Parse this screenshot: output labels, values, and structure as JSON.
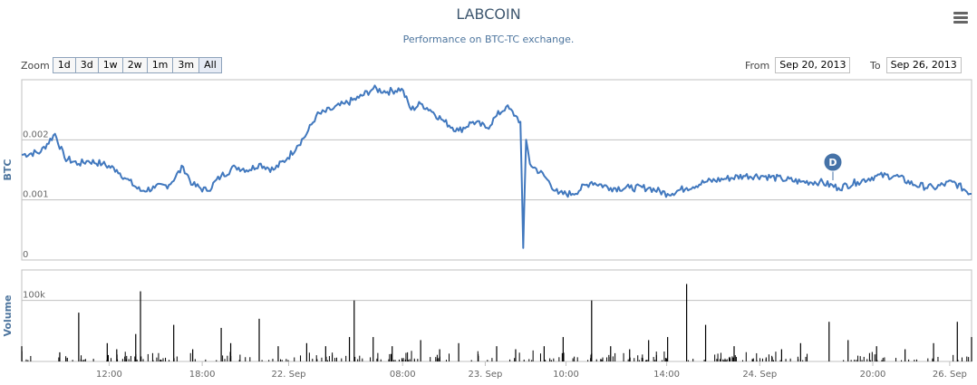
{
  "header": {
    "title": "LABCOIN",
    "subtitle": "Performance on BTC-TC exchange."
  },
  "toolbar": {
    "zoom_label": "Zoom",
    "zoom_buttons": [
      "1d",
      "3d",
      "1w",
      "2w",
      "1m",
      "3m",
      "All"
    ],
    "from_label": "From",
    "from_value": "Sep 20, 2013",
    "to_label": "To",
    "to_value": "Sep 26, 2013",
    "menu_icon": "hamburger-menu-icon"
  },
  "colors": {
    "series": "#4178be",
    "volume": "#000000",
    "grid": "#c0c0c0",
    "axis_title": "#4d759e",
    "flag": "#4572a7"
  },
  "chart_data": [
    {
      "type": "line",
      "ylabel": "BTC",
      "ylim": [
        0,
        0.003
      ],
      "y_ticks": [
        "0",
        "0.001",
        "0.002"
      ],
      "y_tick_values": [
        0,
        0.001,
        0.002
      ],
      "x_ticks": [
        "12:00",
        "18:00",
        "22. Sep",
        "08:00",
        "23. Sep",
        "10:00",
        "14:00",
        "24. Sep",
        "20:00",
        "26. Sep"
      ],
      "flag": {
        "label": "D",
        "x": 0.854
      },
      "series": [
        {
          "x": [
            0.0,
            0.02,
            0.035,
            0.045,
            0.06,
            0.07,
            0.085,
            0.1,
            0.11,
            0.125,
            0.14,
            0.155,
            0.17,
            0.18,
            0.195,
            0.21,
            0.225,
            0.24,
            0.25,
            0.265,
            0.28,
            0.29,
            0.3,
            0.31,
            0.325,
            0.34,
            0.355,
            0.37,
            0.385,
            0.4,
            0.41,
            0.42,
            0.43,
            0.445,
            0.46,
            0.475,
            0.49,
            0.5,
            0.51,
            0.52,
            0.525,
            0.528,
            0.531,
            0.535,
            0.55,
            0.565,
            0.58,
            0.6,
            0.62,
            0.64,
            0.66,
            0.68,
            0.7,
            0.72,
            0.74,
            0.76,
            0.78,
            0.8,
            0.82,
            0.84,
            0.86,
            0.88,
            0.9,
            0.92,
            0.94,
            0.96,
            0.98,
            1.0
          ],
          "y": [
            0.00175,
            0.0018,
            0.0021,
            0.0017,
            0.0016,
            0.00165,
            0.0016,
            0.0015,
            0.00135,
            0.00115,
            0.0012,
            0.00125,
            0.00155,
            0.00125,
            0.00115,
            0.0014,
            0.00155,
            0.0015,
            0.0016,
            0.0015,
            0.0017,
            0.0019,
            0.0021,
            0.0024,
            0.0025,
            0.0026,
            0.0027,
            0.00285,
            0.0028,
            0.00285,
            0.0025,
            0.0026,
            0.0025,
            0.0023,
            0.00215,
            0.0023,
            0.0022,
            0.0024,
            0.00255,
            0.0024,
            0.0023,
            0.0002,
            0.002,
            0.0016,
            0.0014,
            0.0011,
            0.0011,
            0.0013,
            0.0012,
            0.0012,
            0.0012,
            0.0011,
            0.0012,
            0.0013,
            0.00135,
            0.0014,
            0.0014,
            0.00135,
            0.0013,
            0.0013,
            0.0012,
            0.0013,
            0.0014,
            0.0014,
            0.00125,
            0.0012,
            0.0013,
            0.0011
          ]
        }
      ]
    },
    {
      "type": "bar",
      "ylabel": "Volume",
      "y_ticks": [
        "100k"
      ],
      "y_tick_values": [
        100000
      ],
      "ylim": [
        0,
        150000
      ],
      "x": [
        0.0,
        0.04,
        0.06,
        0.09,
        0.1,
        0.12,
        0.125,
        0.16,
        0.18,
        0.21,
        0.22,
        0.25,
        0.27,
        0.3,
        0.32,
        0.345,
        0.35,
        0.37,
        0.39,
        0.42,
        0.44,
        0.46,
        0.5,
        0.52,
        0.55,
        0.57,
        0.6,
        0.62,
        0.64,
        0.66,
        0.68,
        0.7,
        0.72,
        0.75,
        0.8,
        0.82,
        0.85,
        0.87,
        0.9,
        0.93,
        0.96,
        0.985,
        1.0
      ],
      "values": [
        25000,
        15000,
        80000,
        30000,
        20000,
        45000,
        115000,
        60000,
        20000,
        55000,
        30000,
        70000,
        25000,
        30000,
        25000,
        40000,
        100000,
        40000,
        25000,
        35000,
        20000,
        30000,
        25000,
        20000,
        25000,
        40000,
        100000,
        25000,
        20000,
        35000,
        40000,
        127000,
        60000,
        25000,
        20000,
        30000,
        65000,
        35000,
        25000,
        20000,
        30000,
        65000,
        40000
      ]
    }
  ]
}
